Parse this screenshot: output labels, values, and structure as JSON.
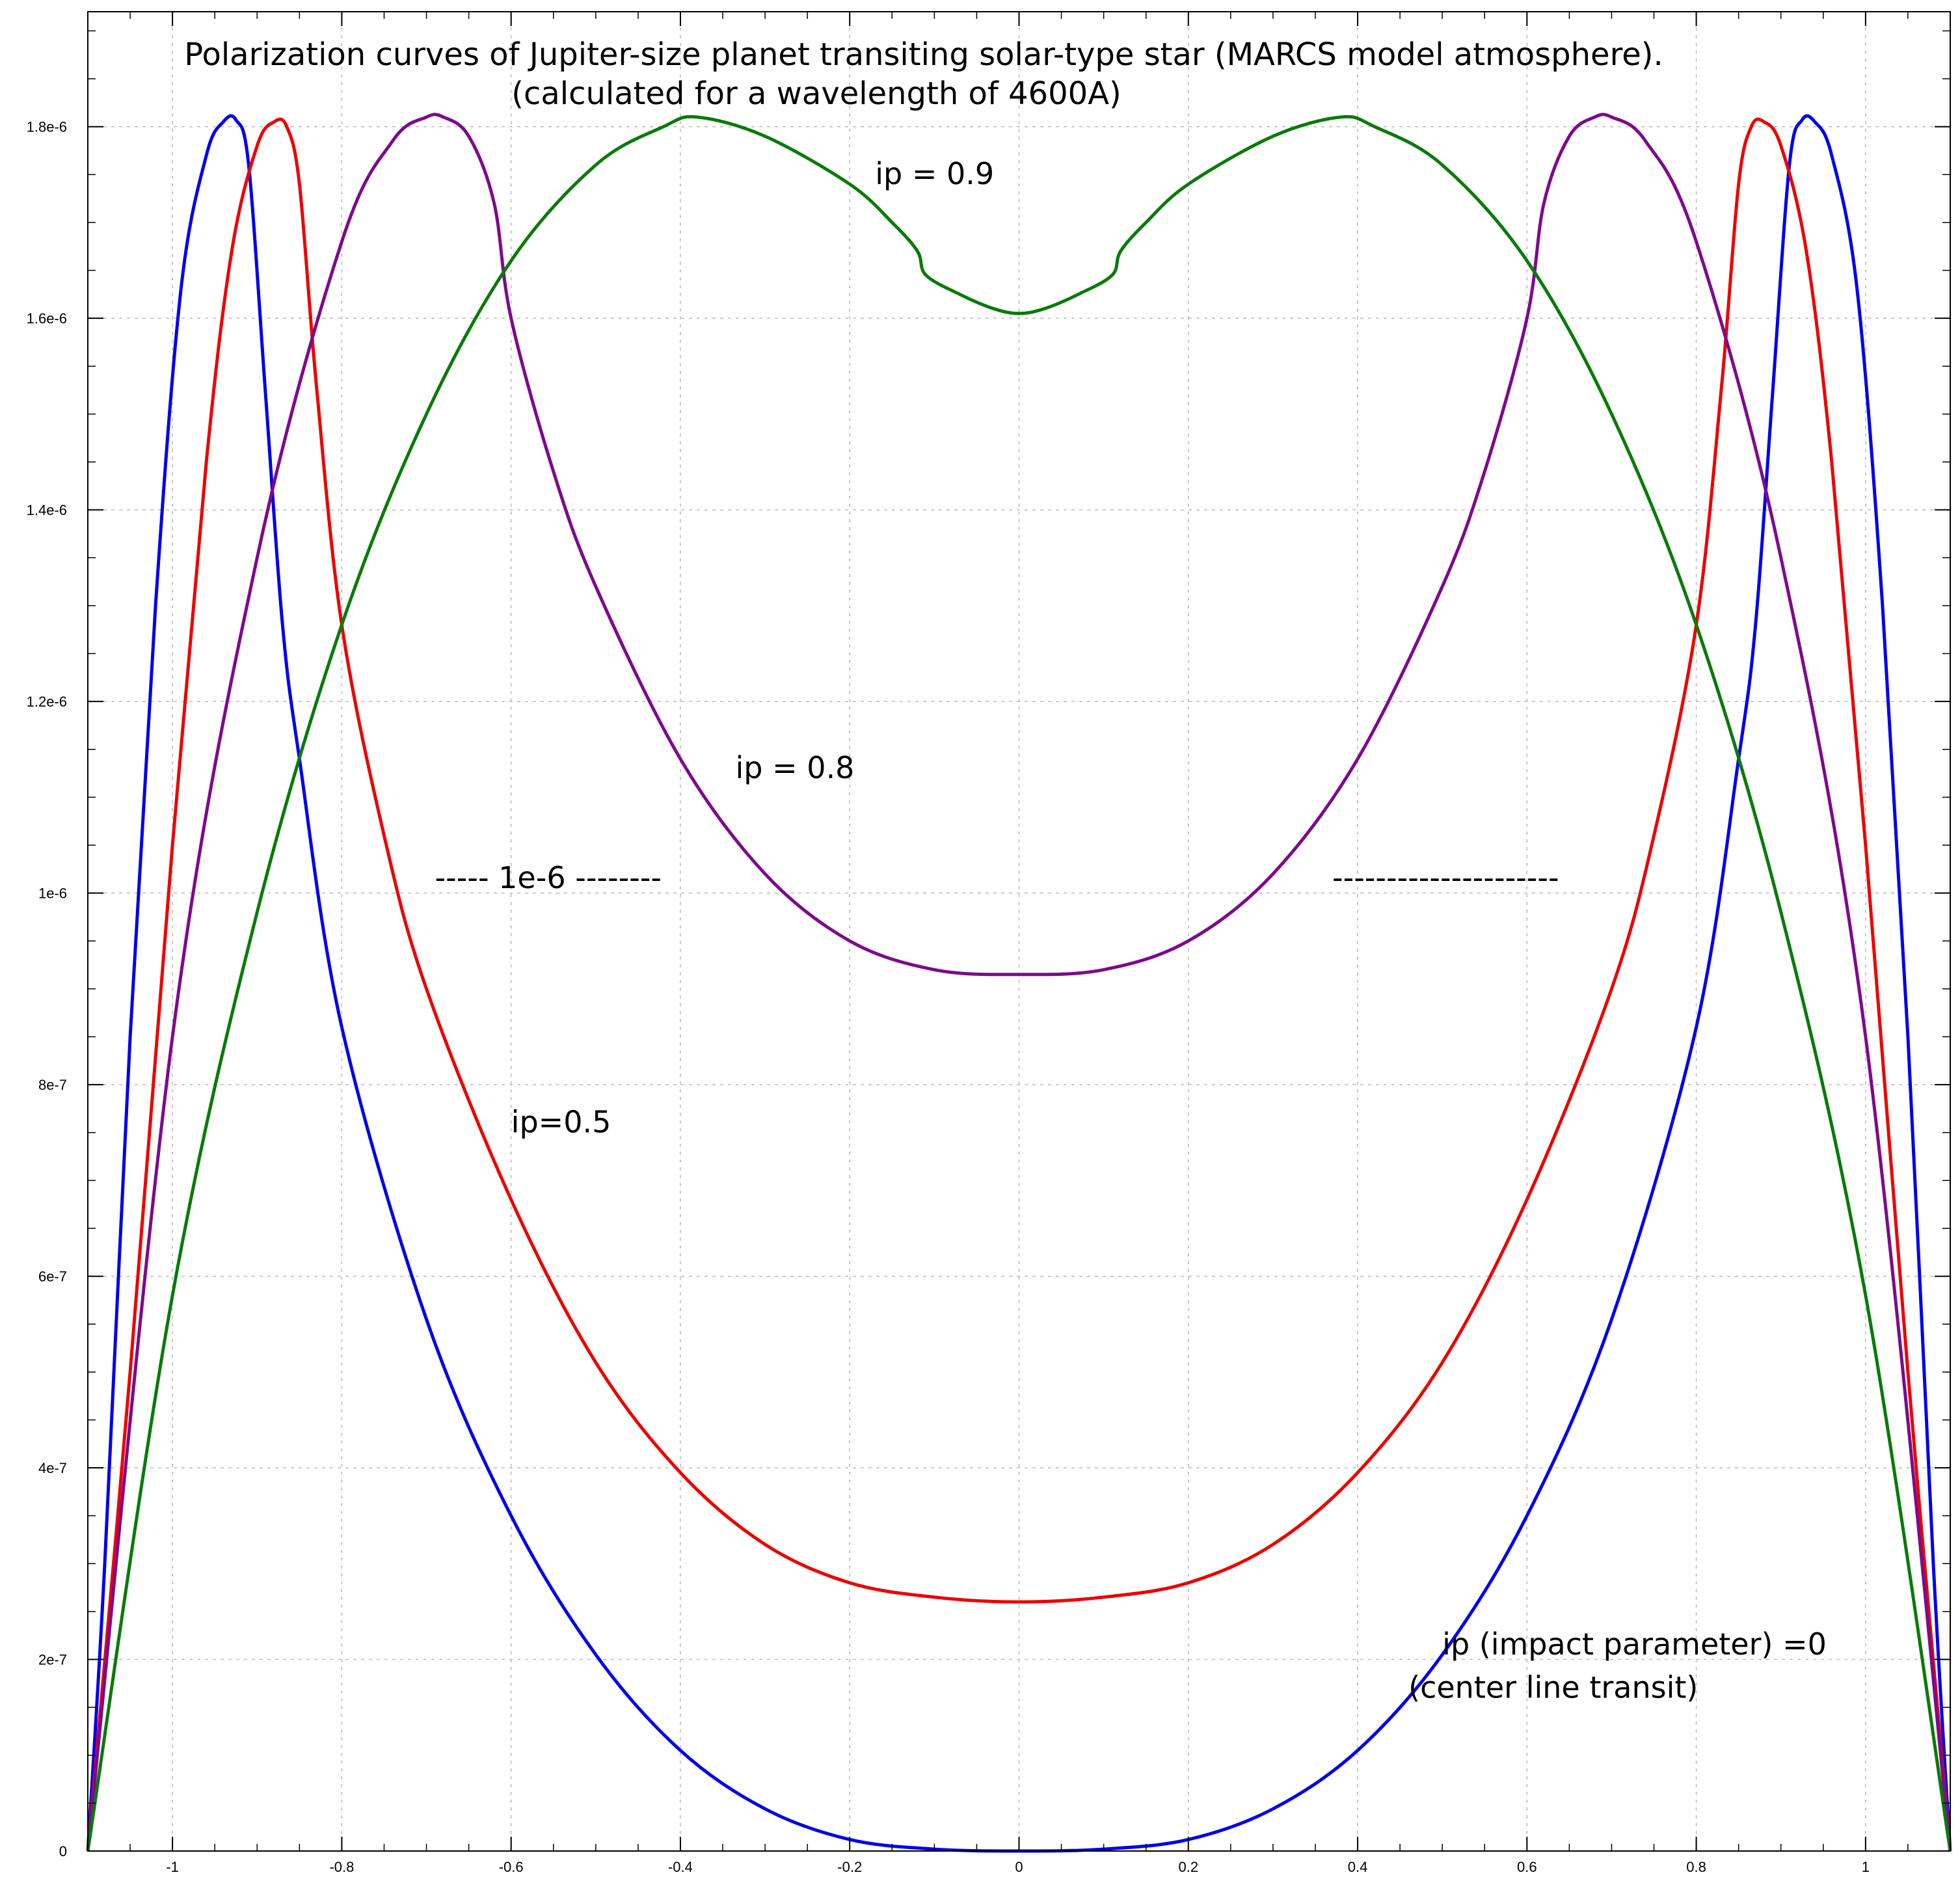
{
  "chart_data": {
    "type": "line",
    "title": "Polarization curves of Jupiter-size planet transiting solar-type star (MARCS model atmosphere).",
    "subtitle": "(calculated for a wavelength of 4600A)",
    "xlabel": "",
    "ylabel": "",
    "xlim": [
      -1.1,
      1.1
    ],
    "ylim": [
      0,
      1.92e-06
    ],
    "grid": true,
    "x_ticks": [
      {
        "value": -1,
        "label": "-1"
      },
      {
        "value": -0.8,
        "label": "-0.8"
      },
      {
        "value": -0.6,
        "label": "-0.6"
      },
      {
        "value": -0.4,
        "label": "-0.4"
      },
      {
        "value": -0.2,
        "label": "-0.2"
      },
      {
        "value": 0,
        "label": "0"
      },
      {
        "value": 0.2,
        "label": "0.2"
      },
      {
        "value": 0.4,
        "label": "0.4"
      },
      {
        "value": 0.6,
        "label": "0.6"
      },
      {
        "value": 0.8,
        "label": "0.8"
      },
      {
        "value": 1,
        "label": "1"
      }
    ],
    "y_ticks": [
      {
        "value": 0,
        "label": "0"
      },
      {
        "value": 2e-07,
        "label": "2e-7"
      },
      {
        "value": 4e-07,
        "label": "4e-7"
      },
      {
        "value": 6e-07,
        "label": "6e-7"
      },
      {
        "value": 8e-07,
        "label": "8e-7"
      },
      {
        "value": 1e-06,
        "label": "1e-6"
      },
      {
        "value": 1.2e-06,
        "label": "1.2e-6"
      },
      {
        "value": 1.4e-06,
        "label": "1.4e-6"
      },
      {
        "value": 1.6e-06,
        "label": "1.6e-6"
      },
      {
        "value": 1.8e-06,
        "label": "1.8e-6"
      }
    ],
    "series": [
      {
        "color": "#0000ee",
        "points": [
          [
            -1.1,
            0.0
          ],
          [
            -1.08,
            3e-07
          ],
          [
            -1.05,
            8.5e-07
          ],
          [
            -1.02,
            1.3e-06
          ],
          [
            -0.99,
            1.63e-06
          ],
          [
            -0.96,
            1.77e-06
          ],
          [
            -0.94,
            1.805e-06
          ],
          [
            -0.925,
            1.807e-06
          ],
          [
            -0.91,
            1.76e-06
          ],
          [
            -0.89,
            1.52e-06
          ],
          [
            -0.87,
            1.28e-06
          ],
          [
            -0.85,
            1.14e-06
          ],
          [
            -0.8,
            8.6e-07
          ],
          [
            -0.7,
            5.55e-07
          ],
          [
            -0.6,
            3.5e-07
          ],
          [
            -0.5,
            2.05e-07
          ],
          [
            -0.4,
            1.05e-07
          ],
          [
            -0.3,
            4.4e-08
          ],
          [
            -0.2,
            1.2e-08
          ],
          [
            -0.1,
            2e-09
          ],
          [
            0.0,
            0.0
          ],
          [
            0.1,
            2e-09
          ],
          [
            0.2,
            1.2e-08
          ],
          [
            0.3,
            4.4e-08
          ],
          [
            0.4,
            1.05e-07
          ],
          [
            0.5,
            2.05e-07
          ],
          [
            0.6,
            3.5e-07
          ],
          [
            0.7,
            5.55e-07
          ],
          [
            0.8,
            8.6e-07
          ],
          [
            0.85,
            1.14e-06
          ],
          [
            0.87,
            1.28e-06
          ],
          [
            0.89,
            1.52e-06
          ],
          [
            0.91,
            1.76e-06
          ],
          [
            0.925,
            1.807e-06
          ],
          [
            0.94,
            1.805e-06
          ],
          [
            0.96,
            1.77e-06
          ],
          [
            0.99,
            1.63e-06
          ],
          [
            1.02,
            1.3e-06
          ],
          [
            1.05,
            8.5e-07
          ],
          [
            1.08,
            3e-07
          ],
          [
            1.1,
            0.0
          ]
        ]
      },
      {
        "color": "#ee0000",
        "points": [
          [
            -1.1,
            0.0
          ],
          [
            -1.05,
            5e-07
          ],
          [
            -1.0,
            1.05e-06
          ],
          [
            -0.96,
            1.45e-06
          ],
          [
            -0.93,
            1.67e-06
          ],
          [
            -0.9,
            1.78e-06
          ],
          [
            -0.88,
            1.805e-06
          ],
          [
            -0.865,
            1.8e-06
          ],
          [
            -0.85,
            1.74e-06
          ],
          [
            -0.83,
            1.53e-06
          ],
          [
            -0.8,
            1.28e-06
          ],
          [
            -0.75,
            1.06e-06
          ],
          [
            -0.7,
            9e-07
          ],
          [
            -0.6,
            6.8e-07
          ],
          [
            -0.5,
            5.1e-07
          ],
          [
            -0.4,
            3.95e-07
          ],
          [
            -0.3,
            3.2e-07
          ],
          [
            -0.2,
            2.8e-07
          ],
          [
            -0.1,
            2.65e-07
          ],
          [
            0.0,
            2.6e-07
          ],
          [
            0.1,
            2.65e-07
          ],
          [
            0.2,
            2.8e-07
          ],
          [
            0.3,
            3.2e-07
          ],
          [
            0.4,
            3.95e-07
          ],
          [
            0.5,
            5.1e-07
          ],
          [
            0.6,
            6.8e-07
          ],
          [
            0.7,
            9e-07
          ],
          [
            0.75,
            1.06e-06
          ],
          [
            0.8,
            1.28e-06
          ],
          [
            0.83,
            1.53e-06
          ],
          [
            0.85,
            1.74e-06
          ],
          [
            0.865,
            1.8e-06
          ],
          [
            0.88,
            1.805e-06
          ],
          [
            0.9,
            1.78e-06
          ],
          [
            0.93,
            1.67e-06
          ],
          [
            0.96,
            1.45e-06
          ],
          [
            1.0,
            1.05e-06
          ],
          [
            1.05,
            5e-07
          ],
          [
            1.1,
            0.0
          ]
        ]
      },
      {
        "color": "#7d0a8c",
        "points": [
          [
            -1.1,
            0.0
          ],
          [
            -1.0,
            8.5e-07
          ],
          [
            -0.9,
            1.35e-06
          ],
          [
            -0.8,
            1.68e-06
          ],
          [
            -0.74,
            1.785e-06
          ],
          [
            -0.7,
            1.81e-06
          ],
          [
            -0.68,
            1.81e-06
          ],
          [
            -0.65,
            1.79e-06
          ],
          [
            -0.62,
            1.72e-06
          ],
          [
            -0.6,
            1.6e-06
          ],
          [
            -0.55,
            1.44e-06
          ],
          [
            -0.5,
            1.32e-06
          ],
          [
            -0.4,
            1.14e-06
          ],
          [
            -0.3,
            1.02e-06
          ],
          [
            -0.2,
            9.5e-07
          ],
          [
            -0.1,
            9.2e-07
          ],
          [
            0.0,
            9.15e-07
          ],
          [
            0.1,
            9.2e-07
          ],
          [
            0.2,
            9.5e-07
          ],
          [
            0.3,
            1.02e-06
          ],
          [
            0.4,
            1.14e-06
          ],
          [
            0.5,
            1.32e-06
          ],
          [
            0.55,
            1.44e-06
          ],
          [
            0.6,
            1.6e-06
          ],
          [
            0.62,
            1.72e-06
          ],
          [
            0.65,
            1.79e-06
          ],
          [
            0.68,
            1.81e-06
          ],
          [
            0.7,
            1.81e-06
          ],
          [
            0.74,
            1.785e-06
          ],
          [
            0.8,
            1.68e-06
          ],
          [
            0.9,
            1.35e-06
          ],
          [
            1.0,
            8.5e-07
          ],
          [
            1.1,
            0.0
          ]
        ]
      },
      {
        "color": "#0a7a0a",
        "points": [
          [
            -1.1,
            0.0
          ],
          [
            -1.0,
            5.8e-07
          ],
          [
            -0.9,
            9.8e-07
          ],
          [
            -0.8,
            1.28e-06
          ],
          [
            -0.7,
            1.5e-06
          ],
          [
            -0.6,
            1.66e-06
          ],
          [
            -0.5,
            1.76e-06
          ],
          [
            -0.42,
            1.8e-06
          ],
          [
            -0.38,
            1.81e-06
          ],
          [
            -0.3,
            1.79e-06
          ],
          [
            -0.2,
            1.74e-06
          ],
          [
            -0.15,
            1.7e-06
          ],
          [
            -0.12,
            1.67e-06
          ],
          [
            -0.11,
            1.645e-06
          ],
          [
            -0.07,
            1.625e-06
          ],
          [
            -0.03,
            1.61e-06
          ],
          [
            0.0,
            1.605e-06
          ],
          [
            0.03,
            1.61e-06
          ],
          [
            0.07,
            1.625e-06
          ],
          [
            0.11,
            1.645e-06
          ],
          [
            0.12,
            1.67e-06
          ],
          [
            0.15,
            1.7e-06
          ],
          [
            0.2,
            1.74e-06
          ],
          [
            0.3,
            1.79e-06
          ],
          [
            0.38,
            1.81e-06
          ],
          [
            0.42,
            1.8e-06
          ],
          [
            0.5,
            1.76e-06
          ],
          [
            0.6,
            1.66e-06
          ],
          [
            0.7,
            1.5e-06
          ],
          [
            0.8,
            1.28e-06
          ],
          [
            0.9,
            9.8e-07
          ],
          [
            1.0,
            5.8e-07
          ],
          [
            1.1,
            0.0
          ]
        ]
      }
    ],
    "annotations": [
      {
        "text": "ip = 0.9",
        "x": -0.17,
        "y": 1.74e-06,
        "size": "large"
      },
      {
        "text": "ip = 0.8",
        "x": -0.335,
        "y": 1.12e-06,
        "size": "large"
      },
      {
        "text": "----- 1e-6 --------",
        "x": -0.69,
        "y": 1.005e-06,
        "size": "large"
      },
      {
        "text": "---------------------",
        "x": 0.37,
        "y": 1.005e-06,
        "size": "large"
      },
      {
        "text": "ip=0.5",
        "x": -0.6,
        "y": 7.5e-07,
        "size": "large"
      },
      {
        "text": "ip (impact parameter) =0",
        "x": 0.5,
        "y": 2.05e-07,
        "size": "large"
      },
      {
        "text": "(center line transit)",
        "x": 0.46,
        "y": 1.6e-07,
        "size": "large"
      }
    ]
  }
}
